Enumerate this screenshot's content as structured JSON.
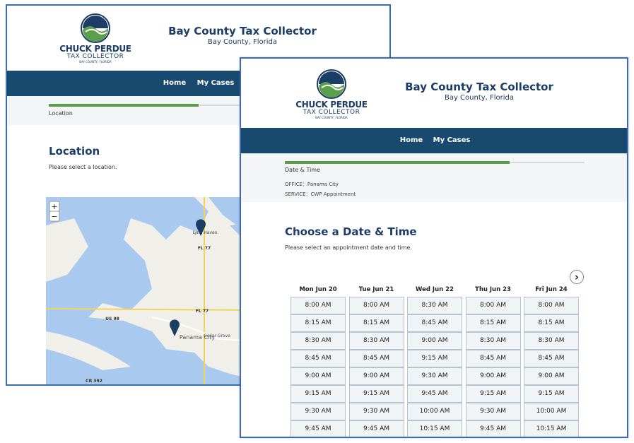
{
  "back_window": {
    "logo": {
      "name": "CHUCK PERDUE",
      "subtitle": "TAX COLLECTOR",
      "location": "BAY COUNTY, FLORIDA"
    },
    "header": {
      "title": "Bay County Tax Collector",
      "subtitle": "Bay County, Florida"
    },
    "nav": [
      "Home",
      "My Cases"
    ],
    "progress_label": "Location",
    "heading": "Location",
    "instruction": "Please select a location.",
    "map": {
      "zoom_in": "+",
      "zoom_out": "−",
      "labels": [
        "Lynn Haven",
        "FL 77",
        "FL 77",
        "US 98",
        "Panama City",
        "Cedar Grove",
        "CR 392"
      ]
    }
  },
  "front_window": {
    "logo": {
      "name": "CHUCK PERDUE",
      "subtitle": "TAX COLLECTOR",
      "location": "BAY COUNTY, FLORIDA"
    },
    "header": {
      "title": "Bay County Tax Collector",
      "subtitle": "Bay County, Florida"
    },
    "nav": [
      "Home",
      "My Cases"
    ],
    "progress_label": "Date & Time",
    "office": "OFFICE：Panama City",
    "service": "SERVICE：CWP Appointment",
    "heading": "Choose a Date & Time",
    "instruction": "Please select an appointment date and time.",
    "next_button": "›",
    "days": [
      {
        "label": "Mon Jun 20",
        "times": [
          "8:00 AM",
          "8:15 AM",
          "8:30 AM",
          "8:45 AM",
          "9:00 AM",
          "9:15 AM",
          "9:30 AM",
          "9:45 AM"
        ]
      },
      {
        "label": "Tue Jun 21",
        "times": [
          "8:00 AM",
          "8:15 AM",
          "8:30 AM",
          "8:45 AM",
          "9:00 AM",
          "9:15 AM",
          "9:30 AM",
          "9:45 AM"
        ]
      },
      {
        "label": "Wed Jun 22",
        "times": [
          "8:30 AM",
          "8:45 AM",
          "9:00 AM",
          "9:15 AM",
          "9:30 AM",
          "9:45 AM",
          "10:00 AM",
          "10:15 AM"
        ]
      },
      {
        "label": "Thu Jun 23",
        "times": [
          "8:00 AM",
          "8:15 AM",
          "8:30 AM",
          "8:45 AM",
          "9:00 AM",
          "9:15 AM",
          "9:30 AM",
          "9:45 AM"
        ]
      },
      {
        "label": "Fri Jun 24",
        "times": [
          "8:00 AM",
          "8:15 AM",
          "8:30 AM",
          "8:45 AM",
          "9:00 AM",
          "9:15 AM",
          "10:00 AM",
          "10:15 AM"
        ]
      }
    ]
  }
}
